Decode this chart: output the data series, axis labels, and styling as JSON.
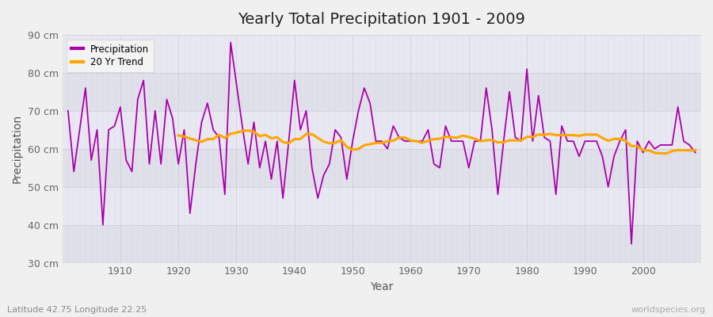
{
  "title": "Yearly Total Precipitation 1901 - 2009",
  "xlabel": "Year",
  "ylabel": "Precipitation",
  "subtitle": "Latitude 42.75 Longitude 22.25",
  "watermark": "worldspecies.org",
  "ylim": [
    30,
    90
  ],
  "yticks": [
    30,
    40,
    50,
    60,
    70,
    80,
    90
  ],
  "ytick_labels": [
    "30 cm",
    "40 cm",
    "50 cm",
    "60 cm",
    "70 cm",
    "80 cm",
    "90 cm"
  ],
  "xticks": [
    1910,
    1920,
    1930,
    1940,
    1950,
    1960,
    1970,
    1980,
    1990,
    2000
  ],
  "precip_color": "#aa00aa",
  "trend_color": "#FFA500",
  "bg_color": "#f0f0f0",
  "plot_bg": "#e8e8f0",
  "years": [
    1901,
    1902,
    1903,
    1904,
    1905,
    1906,
    1907,
    1908,
    1909,
    1910,
    1911,
    1912,
    1913,
    1914,
    1915,
    1916,
    1917,
    1918,
    1919,
    1920,
    1921,
    1922,
    1923,
    1924,
    1925,
    1926,
    1927,
    1928,
    1929,
    1930,
    1931,
    1932,
    1933,
    1934,
    1935,
    1936,
    1937,
    1938,
    1939,
    1940,
    1941,
    1942,
    1943,
    1944,
    1945,
    1946,
    1947,
    1948,
    1949,
    1950,
    1951,
    1952,
    1953,
    1954,
    1955,
    1956,
    1957,
    1958,
    1959,
    1960,
    1961,
    1962,
    1963,
    1964,
    1965,
    1966,
    1967,
    1968,
    1969,
    1970,
    1971,
    1972,
    1973,
    1974,
    1975,
    1976,
    1977,
    1978,
    1979,
    1980,
    1981,
    1982,
    1983,
    1984,
    1985,
    1986,
    1987,
    1988,
    1989,
    1990,
    1991,
    1992,
    1993,
    1994,
    1995,
    1996,
    1997,
    1998,
    1999,
    2000,
    2001,
    2002,
    2003,
    2004,
    2005,
    2006,
    2007,
    2008,
    2009
  ],
  "precipitation": [
    70,
    54,
    65,
    76,
    57,
    65,
    40,
    65,
    66,
    71,
    57,
    54,
    73,
    78,
    56,
    70,
    56,
    73,
    68,
    56,
    65,
    43,
    56,
    67,
    72,
    65,
    63,
    48,
    88,
    77,
    66,
    56,
    67,
    55,
    62,
    52,
    62,
    47,
    62,
    78,
    65,
    70,
    55,
    47,
    53,
    56,
    65,
    63,
    52,
    62,
    70,
    76,
    72,
    62,
    62,
    60,
    66,
    63,
    62,
    62,
    62,
    62,
    65,
    56,
    55,
    66,
    62,
    62,
    62,
    55,
    62,
    62,
    76,
    65,
    48,
    62,
    75,
    63,
    62,
    81,
    62,
    74,
    63,
    62,
    48,
    66,
    62,
    62,
    58,
    62,
    62,
    62,
    58,
    50,
    58,
    62,
    65,
    35,
    62,
    59,
    62,
    60,
    61,
    61,
    61,
    71,
    62,
    61,
    59
  ]
}
